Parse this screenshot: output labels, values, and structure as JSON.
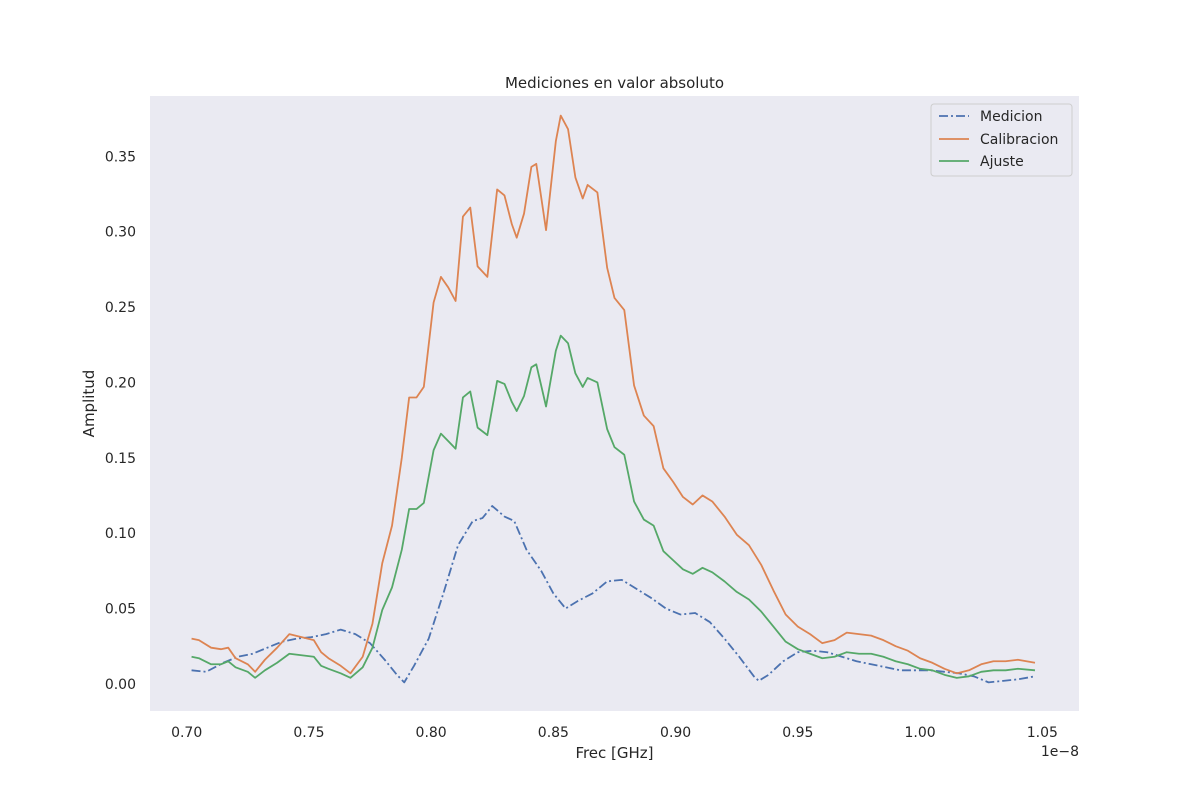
{
  "chart_data": {
    "type": "line",
    "title": "Mediciones en valor absoluto",
    "xlabel": "Frec [GHz]",
    "ylabel": "Amplitud",
    "x_offset_label": "1e−8",
    "xlim": [
      0.685,
      1.065
    ],
    "ylim": [
      -0.018,
      0.39
    ],
    "xticks": [
      0.7,
      0.75,
      0.8,
      0.85,
      0.9,
      0.95,
      1.0,
      1.05
    ],
    "xtick_labels": [
      "0.70",
      "0.75",
      "0.80",
      "0.85",
      "0.90",
      "0.95",
      "1.00",
      "1.05"
    ],
    "yticks": [
      0.0,
      0.05,
      0.1,
      0.15,
      0.2,
      0.25,
      0.3,
      0.35
    ],
    "ytick_labels": [
      "0.00",
      "0.05",
      "0.10",
      "0.15",
      "0.20",
      "0.25",
      "0.30",
      "0.35"
    ],
    "grid": false,
    "background": "#eaeaf2",
    "legend_position": "top-right",
    "series": [
      {
        "name": "Medicion",
        "color": "#4c72b0",
        "dash": "dash-dot",
        "x": [
          0.702,
          0.708,
          0.715,
          0.721,
          0.727,
          0.733,
          0.739,
          0.745,
          0.751,
          0.757,
          0.763,
          0.769,
          0.775,
          0.781,
          0.786,
          0.789,
          0.793,
          0.799,
          0.805,
          0.811,
          0.817,
          0.821,
          0.825,
          0.83,
          0.834,
          0.839,
          0.845,
          0.85,
          0.855,
          0.86,
          0.866,
          0.872,
          0.878,
          0.884,
          0.89,
          0.896,
          0.902,
          0.908,
          0.914,
          0.92,
          0.926,
          0.932,
          0.934,
          0.938,
          0.944,
          0.95,
          0.956,
          0.962,
          0.968,
          0.974,
          0.98,
          0.986,
          0.992,
          0.998,
          1.004,
          1.01,
          1.016,
          1.022,
          1.028,
          1.034,
          1.04,
          1.047
        ],
        "y": [
          0.009,
          0.008,
          0.014,
          0.018,
          0.02,
          0.024,
          0.028,
          0.03,
          0.031,
          0.033,
          0.036,
          0.033,
          0.027,
          0.016,
          0.006,
          0.001,
          0.012,
          0.03,
          0.06,
          0.092,
          0.108,
          0.11,
          0.118,
          0.111,
          0.108,
          0.089,
          0.075,
          0.06,
          0.05,
          0.055,
          0.06,
          0.068,
          0.069,
          0.063,
          0.057,
          0.05,
          0.046,
          0.047,
          0.041,
          0.03,
          0.018,
          0.005,
          0.002,
          0.006,
          0.015,
          0.021,
          0.022,
          0.021,
          0.018,
          0.015,
          0.013,
          0.011,
          0.009,
          0.009,
          0.009,
          0.008,
          0.007,
          0.005,
          0.001,
          0.002,
          0.003,
          0.005
        ]
      },
      {
        "name": "Calibracion",
        "color": "#dd8452",
        "dash": "solid",
        "x": [
          0.702,
          0.705,
          0.71,
          0.714,
          0.717,
          0.72,
          0.725,
          0.728,
          0.732,
          0.737,
          0.742,
          0.747,
          0.752,
          0.755,
          0.758,
          0.763,
          0.767,
          0.772,
          0.776,
          0.78,
          0.784,
          0.788,
          0.791,
          0.794,
          0.797,
          0.801,
          0.804,
          0.807,
          0.81,
          0.813,
          0.816,
          0.819,
          0.823,
          0.827,
          0.83,
          0.833,
          0.835,
          0.838,
          0.841,
          0.843,
          0.847,
          0.851,
          0.853,
          0.856,
          0.859,
          0.862,
          0.864,
          0.868,
          0.872,
          0.875,
          0.879,
          0.883,
          0.887,
          0.891,
          0.895,
          0.899,
          0.903,
          0.907,
          0.911,
          0.915,
          0.92,
          0.925,
          0.93,
          0.935,
          0.94,
          0.945,
          0.95,
          0.955,
          0.96,
          0.965,
          0.97,
          0.975,
          0.98,
          0.985,
          0.99,
          0.995,
          1.0,
          1.005,
          1.01,
          1.015,
          1.02,
          1.025,
          1.03,
          1.035,
          1.04,
          1.047
        ],
        "y": [
          0.03,
          0.029,
          0.024,
          0.023,
          0.024,
          0.017,
          0.013,
          0.008,
          0.016,
          0.024,
          0.033,
          0.031,
          0.029,
          0.021,
          0.017,
          0.012,
          0.007,
          0.018,
          0.04,
          0.08,
          0.105,
          0.15,
          0.19,
          0.19,
          0.197,
          0.253,
          0.27,
          0.263,
          0.254,
          0.31,
          0.316,
          0.277,
          0.27,
          0.328,
          0.324,
          0.305,
          0.296,
          0.312,
          0.343,
          0.345,
          0.301,
          0.36,
          0.377,
          0.368,
          0.336,
          0.322,
          0.331,
          0.326,
          0.276,
          0.256,
          0.248,
          0.198,
          0.178,
          0.171,
          0.143,
          0.134,
          0.124,
          0.119,
          0.125,
          0.121,
          0.111,
          0.099,
          0.092,
          0.079,
          0.062,
          0.046,
          0.038,
          0.033,
          0.027,
          0.029,
          0.034,
          0.033,
          0.032,
          0.029,
          0.025,
          0.022,
          0.017,
          0.014,
          0.01,
          0.007,
          0.009,
          0.013,
          0.015,
          0.015,
          0.016,
          0.014
        ]
      },
      {
        "name": "Ajuste",
        "color": "#55a868",
        "dash": "solid",
        "x": [
          0.702,
          0.705,
          0.71,
          0.714,
          0.717,
          0.72,
          0.725,
          0.728,
          0.732,
          0.737,
          0.742,
          0.747,
          0.752,
          0.755,
          0.758,
          0.763,
          0.767,
          0.772,
          0.776,
          0.78,
          0.784,
          0.788,
          0.791,
          0.794,
          0.797,
          0.801,
          0.804,
          0.807,
          0.81,
          0.813,
          0.816,
          0.819,
          0.823,
          0.827,
          0.83,
          0.833,
          0.835,
          0.838,
          0.841,
          0.843,
          0.847,
          0.851,
          0.853,
          0.856,
          0.859,
          0.862,
          0.864,
          0.868,
          0.872,
          0.875,
          0.879,
          0.883,
          0.887,
          0.891,
          0.895,
          0.899,
          0.903,
          0.907,
          0.911,
          0.915,
          0.92,
          0.925,
          0.93,
          0.935,
          0.94,
          0.945,
          0.95,
          0.955,
          0.96,
          0.965,
          0.97,
          0.975,
          0.98,
          0.985,
          0.99,
          0.995,
          1.0,
          1.005,
          1.01,
          1.015,
          1.02,
          1.025,
          1.03,
          1.035,
          1.04,
          1.047
        ],
        "y": [
          0.018,
          0.017,
          0.013,
          0.013,
          0.015,
          0.011,
          0.008,
          0.004,
          0.009,
          0.014,
          0.02,
          0.019,
          0.018,
          0.012,
          0.01,
          0.007,
          0.004,
          0.011,
          0.024,
          0.049,
          0.064,
          0.089,
          0.116,
          0.116,
          0.12,
          0.155,
          0.166,
          0.161,
          0.156,
          0.19,
          0.194,
          0.17,
          0.165,
          0.201,
          0.199,
          0.187,
          0.181,
          0.191,
          0.21,
          0.212,
          0.184,
          0.221,
          0.231,
          0.226,
          0.206,
          0.197,
          0.203,
          0.2,
          0.169,
          0.157,
          0.152,
          0.121,
          0.109,
          0.105,
          0.088,
          0.082,
          0.076,
          0.073,
          0.077,
          0.074,
          0.068,
          0.061,
          0.056,
          0.048,
          0.038,
          0.028,
          0.023,
          0.02,
          0.017,
          0.018,
          0.021,
          0.02,
          0.02,
          0.018,
          0.015,
          0.013,
          0.01,
          0.009,
          0.006,
          0.004,
          0.005,
          0.008,
          0.009,
          0.009,
          0.01,
          0.009
        ]
      }
    ]
  }
}
